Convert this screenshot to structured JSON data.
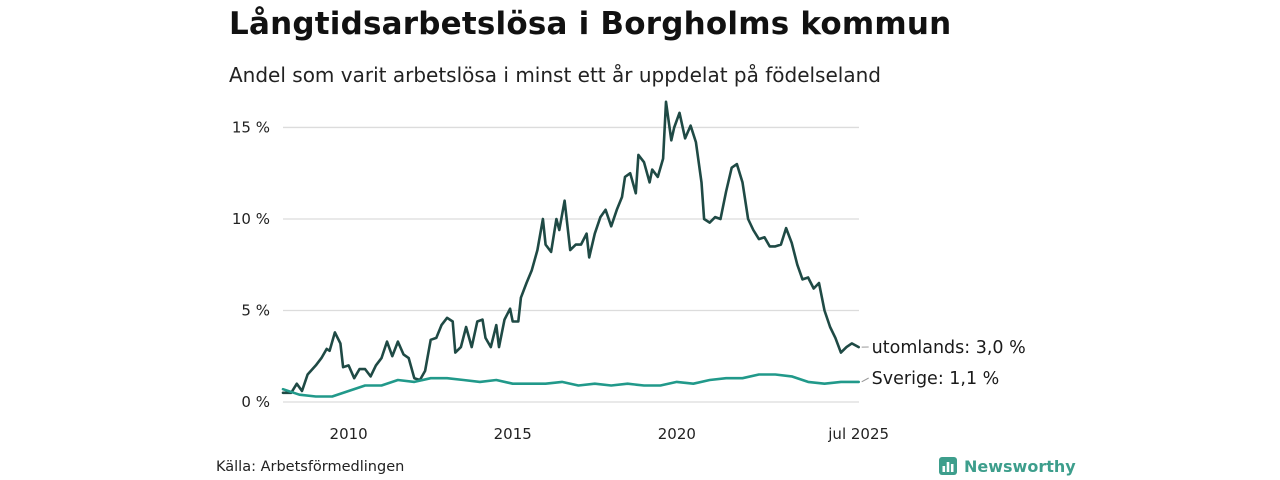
{
  "header": {
    "title": "Långtidsarbetslösa i Borgholms kommun",
    "subtitle": "Andel som varit arbetslösa i minst ett år uppdelat på födelseland"
  },
  "footer": {
    "source": "Källa: Arbetsförmedlingen",
    "brand": "Newsworthy"
  },
  "colors": {
    "utomlands": "#1f4a45",
    "sverige": "#21998a",
    "grid": "#dcdcdc",
    "brand": "#3d9e8c"
  },
  "chart_data": {
    "type": "line",
    "x_unit": "year",
    "xlim": [
      2008.0,
      2025.55
    ],
    "ylim": [
      0,
      16.5
    ],
    "y_ticks": [
      {
        "value": 0,
        "label": "0 %"
      },
      {
        "value": 5,
        "label": "5 %"
      },
      {
        "value": 10,
        "label": "10 %"
      },
      {
        "value": 15,
        "label": "15 %"
      }
    ],
    "x_ticks": [
      {
        "value": 2010,
        "label": "2010"
      },
      {
        "value": 2015,
        "label": "2015"
      },
      {
        "value": 2020,
        "label": "2020"
      },
      {
        "value": 2025.54,
        "label": "jul 2025"
      }
    ],
    "grid": "horizontal",
    "series": [
      {
        "name": "utomlands",
        "end_label": "utomlands: 3,0 %",
        "color": "#1f4a45",
        "points": [
          [
            2008.0,
            0.5
          ],
          [
            2008.25,
            0.5
          ],
          [
            2008.42,
            1.0
          ],
          [
            2008.58,
            0.6
          ],
          [
            2008.75,
            1.5
          ],
          [
            2009.0,
            2.0
          ],
          [
            2009.17,
            2.4
          ],
          [
            2009.33,
            2.9
          ],
          [
            2009.42,
            2.8
          ],
          [
            2009.58,
            3.8
          ],
          [
            2009.75,
            3.2
          ],
          [
            2009.83,
            1.9
          ],
          [
            2010.0,
            2.0
          ],
          [
            2010.17,
            1.3
          ],
          [
            2010.33,
            1.8
          ],
          [
            2010.5,
            1.8
          ],
          [
            2010.67,
            1.4
          ],
          [
            2010.83,
            2.0
          ],
          [
            2011.0,
            2.4
          ],
          [
            2011.17,
            3.3
          ],
          [
            2011.33,
            2.5
          ],
          [
            2011.5,
            3.3
          ],
          [
            2011.67,
            2.6
          ],
          [
            2011.83,
            2.4
          ],
          [
            2012.0,
            1.3
          ],
          [
            2012.17,
            1.2
          ],
          [
            2012.33,
            1.7
          ],
          [
            2012.5,
            3.4
          ],
          [
            2012.67,
            3.5
          ],
          [
            2012.83,
            4.2
          ],
          [
            2013.0,
            4.6
          ],
          [
            2013.17,
            4.4
          ],
          [
            2013.25,
            2.7
          ],
          [
            2013.42,
            3.0
          ],
          [
            2013.58,
            4.1
          ],
          [
            2013.75,
            3.0
          ],
          [
            2013.92,
            4.4
          ],
          [
            2014.08,
            4.5
          ],
          [
            2014.17,
            3.5
          ],
          [
            2014.33,
            3.0
          ],
          [
            2014.5,
            4.2
          ],
          [
            2014.58,
            3.0
          ],
          [
            2014.75,
            4.5
          ],
          [
            2014.92,
            5.1
          ],
          [
            2015.0,
            4.4
          ],
          [
            2015.17,
            4.4
          ],
          [
            2015.25,
            5.7
          ],
          [
            2015.42,
            6.5
          ],
          [
            2015.58,
            7.2
          ],
          [
            2015.75,
            8.3
          ],
          [
            2015.92,
            10.0
          ],
          [
            2016.0,
            8.6
          ],
          [
            2016.17,
            8.2
          ],
          [
            2016.33,
            10.0
          ],
          [
            2016.42,
            9.4
          ],
          [
            2016.58,
            11.0
          ],
          [
            2016.75,
            8.3
          ],
          [
            2016.92,
            8.6
          ],
          [
            2017.08,
            8.6
          ],
          [
            2017.25,
            9.2
          ],
          [
            2017.33,
            7.9
          ],
          [
            2017.5,
            9.2
          ],
          [
            2017.67,
            10.1
          ],
          [
            2017.83,
            10.5
          ],
          [
            2018.0,
            9.6
          ],
          [
            2018.17,
            10.5
          ],
          [
            2018.33,
            11.2
          ],
          [
            2018.42,
            12.3
          ],
          [
            2018.58,
            12.5
          ],
          [
            2018.75,
            11.4
          ],
          [
            2018.83,
            13.5
          ],
          [
            2019.0,
            13.1
          ],
          [
            2019.17,
            12.0
          ],
          [
            2019.25,
            12.7
          ],
          [
            2019.42,
            12.3
          ],
          [
            2019.58,
            13.3
          ],
          [
            2019.67,
            16.4
          ],
          [
            2019.83,
            14.3
          ],
          [
            2019.92,
            15.0
          ],
          [
            2020.08,
            15.8
          ],
          [
            2020.25,
            14.4
          ],
          [
            2020.42,
            15.1
          ],
          [
            2020.58,
            14.2
          ],
          [
            2020.75,
            12.0
          ],
          [
            2020.83,
            10.0
          ],
          [
            2021.0,
            9.8
          ],
          [
            2021.17,
            10.1
          ],
          [
            2021.33,
            10.0
          ],
          [
            2021.5,
            11.5
          ],
          [
            2021.67,
            12.8
          ],
          [
            2021.83,
            13.0
          ],
          [
            2022.0,
            12.0
          ],
          [
            2022.17,
            10.0
          ],
          [
            2022.33,
            9.4
          ],
          [
            2022.5,
            8.9
          ],
          [
            2022.67,
            9.0
          ],
          [
            2022.83,
            8.5
          ],
          [
            2023.0,
            8.5
          ],
          [
            2023.17,
            8.6
          ],
          [
            2023.33,
            9.5
          ],
          [
            2023.5,
            8.7
          ],
          [
            2023.67,
            7.5
          ],
          [
            2023.83,
            6.7
          ],
          [
            2024.0,
            6.8
          ],
          [
            2024.17,
            6.2
          ],
          [
            2024.33,
            6.5
          ],
          [
            2024.5,
            5.0
          ],
          [
            2024.67,
            4.1
          ],
          [
            2024.83,
            3.5
          ],
          [
            2025.0,
            2.7
          ],
          [
            2025.17,
            3.0
          ],
          [
            2025.33,
            3.2
          ],
          [
            2025.54,
            3.0
          ]
        ]
      },
      {
        "name": "Sverige",
        "end_label": "Sverige: 1,1 %",
        "color": "#21998a",
        "points": [
          [
            2008.0,
            0.7
          ],
          [
            2008.5,
            0.4
          ],
          [
            2009.0,
            0.3
          ],
          [
            2009.5,
            0.3
          ],
          [
            2010.0,
            0.6
          ],
          [
            2010.5,
            0.9
          ],
          [
            2011.0,
            0.9
          ],
          [
            2011.5,
            1.2
          ],
          [
            2012.0,
            1.1
          ],
          [
            2012.5,
            1.3
          ],
          [
            2013.0,
            1.3
          ],
          [
            2013.5,
            1.2
          ],
          [
            2014.0,
            1.1
          ],
          [
            2014.5,
            1.2
          ],
          [
            2015.0,
            1.0
          ],
          [
            2015.5,
            1.0
          ],
          [
            2016.0,
            1.0
          ],
          [
            2016.5,
            1.1
          ],
          [
            2017.0,
            0.9
          ],
          [
            2017.5,
            1.0
          ],
          [
            2018.0,
            0.9
          ],
          [
            2018.5,
            1.0
          ],
          [
            2019.0,
            0.9
          ],
          [
            2019.5,
            0.9
          ],
          [
            2020.0,
            1.1
          ],
          [
            2020.5,
            1.0
          ],
          [
            2021.0,
            1.2
          ],
          [
            2021.5,
            1.3
          ],
          [
            2022.0,
            1.3
          ],
          [
            2022.5,
            1.5
          ],
          [
            2023.0,
            1.5
          ],
          [
            2023.5,
            1.4
          ],
          [
            2024.0,
            1.1
          ],
          [
            2024.5,
            1.0
          ],
          [
            2025.0,
            1.1
          ],
          [
            2025.54,
            1.1
          ]
        ]
      }
    ]
  }
}
